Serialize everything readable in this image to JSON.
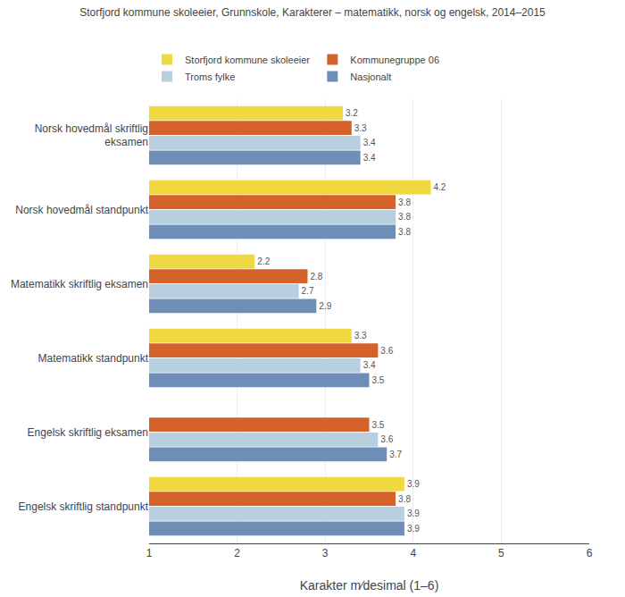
{
  "chart_data": {
    "type": "bar",
    "orientation": "horizontal",
    "title": "Storfjord kommune skoleeier, Grunnskole, Karakterer – matematikk, norsk og engelsk, 2014–2015",
    "xlabel": "Karakter m⁄desimal (1–6)",
    "categories": [
      "Norsk hovedmål skriftlig\neksamen",
      "Norsk hovedmål standpunkt",
      "Matematikk skriftlig eksamen",
      "Matematikk standpunkt",
      "Engelsk skriftlig eksamen",
      "Engelsk skriftlig standpunkt"
    ],
    "series": [
      {
        "name": "Storfjord kommune skoleeier",
        "color": "#f0d840",
        "values": [
          3.2,
          4.2,
          2.2,
          3.3,
          null,
          3.9
        ]
      },
      {
        "name": "Kommunegruppe 06",
        "color": "#d4622a",
        "values": [
          3.3,
          3.8,
          2.8,
          3.6,
          3.5,
          3.8
        ]
      },
      {
        "name": "Troms fylke",
        "color": "#b8cfe0",
        "values": [
          3.4,
          3.8,
          2.7,
          3.4,
          3.6,
          3.9
        ]
      },
      {
        "name": "Nasjonalt",
        "color": "#6e8eb8",
        "values": [
          3.4,
          3.8,
          2.9,
          3.5,
          3.7,
          3.9
        ]
      }
    ],
    "xlim": [
      1,
      6
    ],
    "xticks": [
      1,
      2,
      3,
      4,
      5,
      6
    ],
    "grid": true,
    "data_labels": true,
    "legend": "top"
  }
}
